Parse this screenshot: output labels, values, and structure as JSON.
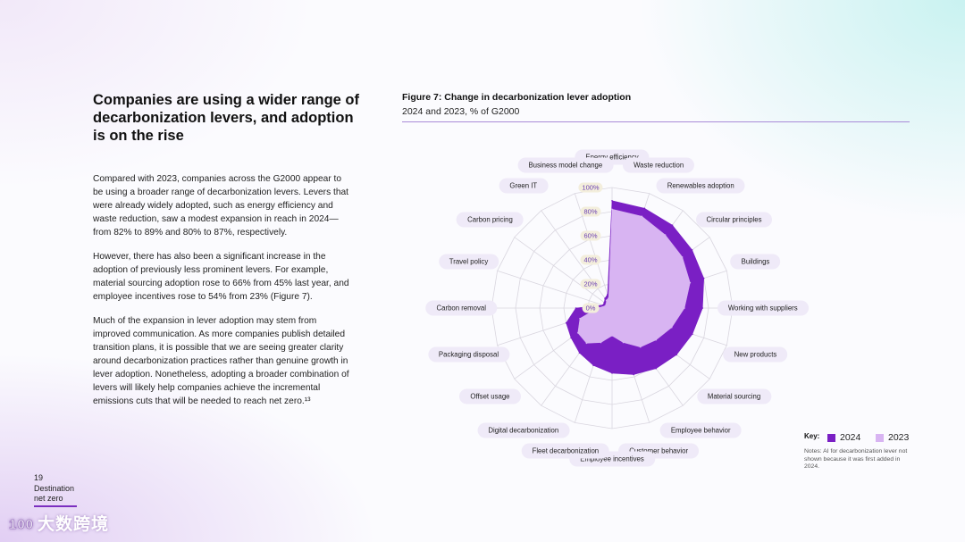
{
  "headline": "Companies are using a wider range of decarbonization levers, and adoption is on the rise",
  "paragraphs": [
    "Compared with 2023, companies across the G2000 appear to be using a broader range of decarbonization levers. Levers that were already widely adopted, such as energy efficiency and waste reduction, saw a modest expansion in reach in 2024—from 82% to 89% and 80% to 87%, respectively.",
    "However, there has also been a significant increase in the adoption of previously less prominent levers. For example, material sourcing adoption rose to 66% from 45% last year, and employee incentives rose to 54% from 23% (Figure 7).",
    "Much of the expansion in lever adoption may stem from improved communication. As more companies publish detailed transition plans, it is possible that we are seeing greater clarity around decarbonization practices rather than genuine growth in lever adoption. Nonetheless, adopting a broader combination of levers will likely help companies achieve the incremental emissions cuts that will be needed to reach net zero.¹³"
  ],
  "figure": {
    "title": "Figure 7: Change in decarbonization lever adoption",
    "subtitle": "2024 and 2023, % of G2000"
  },
  "chart_data": {
    "type": "radar",
    "title": "Figure 7: Change in decarbonization lever adoption",
    "subtitle": "2024 and 2023, % of G2000",
    "categories": [
      "Energy efficiency",
      "Waste reduction",
      "Renewables adoption",
      "Circular principles",
      "Buildings",
      "Working with suppliers",
      "New products",
      "Material sourcing",
      "Employee behavior",
      "Customer behavior",
      "Employee incentives",
      "Fleet decarbonization",
      "Digital decarbonization",
      "Offset usage",
      "Packaging disposal",
      "Carbon removal",
      "Travel policy",
      "Carbon pricing",
      "Green IT",
      "Business model change"
    ],
    "series": [
      {
        "name": "2024",
        "color": "#7a1fc4",
        "values": [
          89,
          87,
          85,
          82,
          80,
          75,
          70,
          66,
          62,
          58,
          54,
          50,
          46,
          42,
          40,
          30,
          8,
          8,
          10,
          12
        ]
      },
      {
        "name": "2023",
        "color": "#d8b4f2",
        "values": [
          82,
          80,
          75,
          72,
          68,
          60,
          52,
          45,
          40,
          30,
          23,
          30,
          36,
          35,
          28,
          12,
          6,
          6,
          8,
          9
        ]
      }
    ],
    "r_ticks": [
      "0%",
      "20%",
      "40%",
      "60%",
      "80%",
      "100%"
    ],
    "r_range": [
      0,
      100
    ],
    "legend": {
      "title": "Key:",
      "position": "bottom-right"
    }
  },
  "notes": "Notes: AI for decarbonization lever not shown because it was first added in 2024.",
  "footer": {
    "page_number": "19",
    "section": "Destination net zero"
  },
  "watermark": "大数跨境",
  "watermark_logo": "100"
}
